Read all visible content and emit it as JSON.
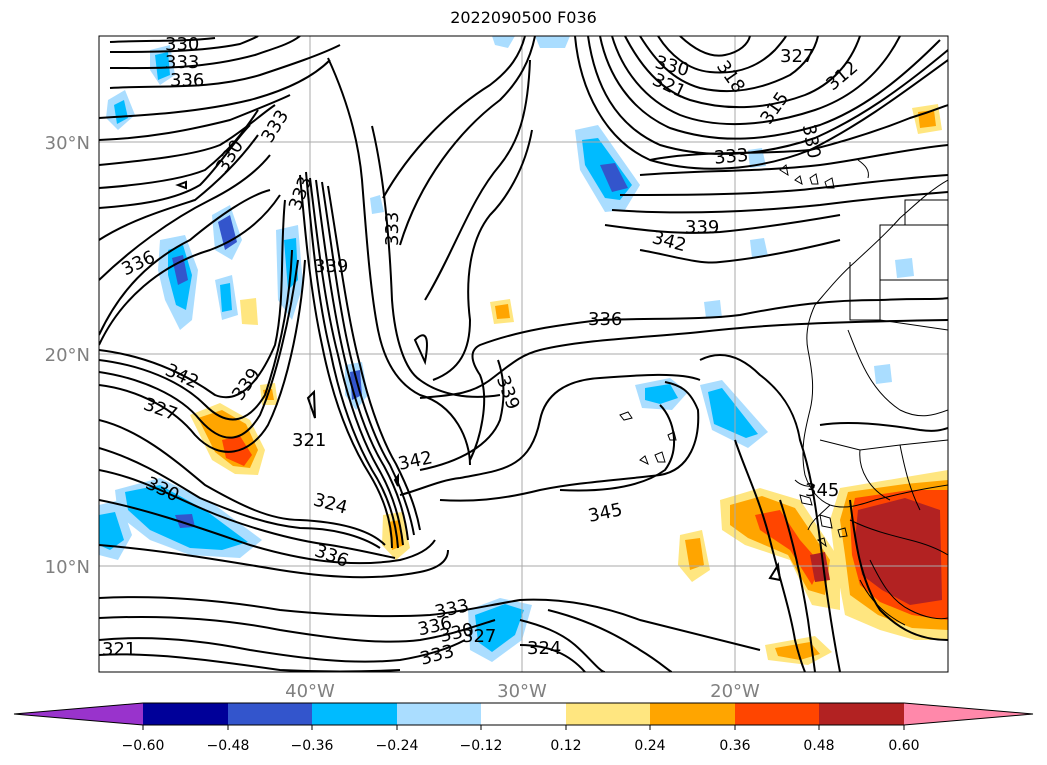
{
  "title": "2022090500 F036",
  "lat_labels": [
    "30°N",
    "20°N",
    "10°N"
  ],
  "lon_labels": [
    "40°W",
    "30°W",
    "20°W"
  ],
  "colorbar": {
    "ticks": [
      "−0.60",
      "−0.48",
      "−0.36",
      "−0.24",
      "−0.12",
      "0.12",
      "0.24",
      "0.36",
      "0.48",
      "0.60"
    ],
    "colors": [
      "#9933cc",
      "#000099",
      "#3355cc",
      "#00bbff",
      "#aaddff",
      "#ffffff",
      "#ffe680",
      "#ffa500",
      "#ff4500",
      "#b22222",
      "#ff88aa"
    ]
  },
  "contour_labels": [
    "330",
    "333",
    "336",
    "333",
    "330",
    "333",
    "336",
    "339",
    "333",
    "342",
    "339",
    "327",
    "321",
    "342",
    "324",
    "336",
    "330",
    "345",
    "336",
    "339",
    "336",
    "333",
    "330",
    "327",
    "333",
    "324",
    "321",
    "330",
    "321",
    "318",
    "327",
    "312",
    "315",
    "330",
    "333",
    "339",
    "342",
    "345"
  ]
}
